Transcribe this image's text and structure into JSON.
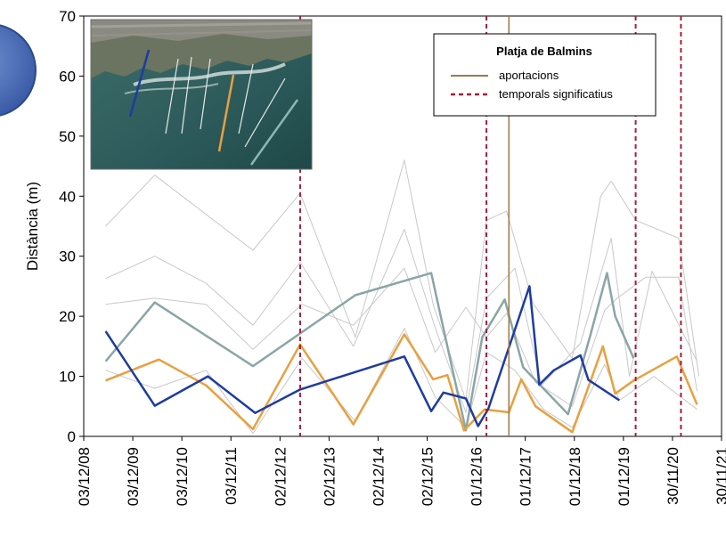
{
  "chart_data": {
    "type": "line",
    "ylabel": "Distància (m)",
    "xlabel": "",
    "ylim": [
      0,
      70
    ],
    "yticks": [
      0,
      10,
      20,
      30,
      40,
      50,
      60,
      70
    ],
    "x_tick_labels": [
      "03/12/08",
      "03/12/09",
      "03/12/10",
      "03/12/11",
      "02/12/12",
      "02/12/13",
      "02/12/14",
      "02/12/15",
      "01/12/16",
      "01/12/17",
      "01/12/18",
      "01/12/19",
      "30/11/20",
      "30/11/21"
    ],
    "xlim": [
      "2008-12-03",
      "2021-11-30"
    ],
    "legend": {
      "title": "Platja de Balmins",
      "items": [
        {
          "label": "aportacions",
          "color": "#a0784a",
          "style": "solid"
        },
        {
          "label": "temporals significatius",
          "color": "#a01e3c",
          "style": "dashed"
        }
      ]
    },
    "vertical_markers": [
      {
        "kind": "temporals significatius",
        "x": "2013-05-01",
        "color": "#a01e3c",
        "style": "dashed"
      },
      {
        "kind": "temporals significatius",
        "x": "2017-02-15",
        "color": "#a01e3c",
        "style": "dashed"
      },
      {
        "kind": "temporals significatius",
        "x": "2020-03-01",
        "color": "#a01e3c",
        "style": "dashed"
      },
      {
        "kind": "temporals significatius",
        "x": "2021-02-01",
        "color": "#a01e3c",
        "style": "dashed"
      },
      {
        "kind": "aportacions",
        "x": "2017-08-01",
        "color": "#a0784a",
        "style": "solid"
      }
    ],
    "series": [
      {
        "color": "#8aa6a4",
        "width": 2.5,
        "points": [
          [
            "2009-05-15",
            12.5
          ],
          [
            "2010-05-15",
            22.3
          ],
          [
            "2012-05-15",
            11.7
          ],
          [
            "2014-06-15",
            23.5
          ],
          [
            "2016-01-01",
            27.2
          ],
          [
            "2016-09-15",
            1.0
          ],
          [
            "2017-01-15",
            16.5
          ],
          [
            "2017-07-01",
            22.8
          ],
          [
            "2017-11-15",
            11.5
          ],
          [
            "2018-10-15",
            3.7
          ],
          [
            "2019-04-01",
            17.0
          ],
          [
            "2019-08-01",
            27.2
          ],
          [
            "2019-10-01",
            20.0
          ],
          [
            "2020-02-15",
            13.0
          ]
        ]
      },
      {
        "color": "#e8a040",
        "width": 2.5,
        "points": [
          [
            "2009-05-15",
            9.3
          ],
          [
            "2010-06-15",
            12.8
          ],
          [
            "2011-06-01",
            8.5
          ],
          [
            "2012-05-15",
            1.2
          ],
          [
            "2013-05-01",
            15.3
          ],
          [
            "2014-06-01",
            2.0
          ],
          [
            "2015-06-15",
            17.0
          ],
          [
            "2016-01-15",
            9.5
          ],
          [
            "2016-05-01",
            10.2
          ],
          [
            "2016-09-01",
            1.0
          ],
          [
            "2017-02-01",
            4.5
          ],
          [
            "2017-08-01",
            4.0
          ],
          [
            "2017-11-01",
            9.5
          ],
          [
            "2018-02-15",
            5.0
          ],
          [
            "2018-11-15",
            0.7
          ],
          [
            "2019-07-01",
            15.0
          ],
          [
            "2019-10-01",
            7.1
          ],
          [
            "2020-02-15",
            9.3
          ],
          [
            "2021-01-01",
            13.3
          ],
          [
            "2021-06-01",
            5.3
          ]
        ]
      },
      {
        "color": "#1e3ca0",
        "width": 2.5,
        "points": [
          [
            "2009-05-15",
            17.5
          ],
          [
            "2010-05-15",
            5.1
          ],
          [
            "2011-06-15",
            10.0
          ],
          [
            "2012-06-01",
            3.9
          ],
          [
            "2013-05-01",
            7.8
          ],
          [
            "2015-06-15",
            13.3
          ],
          [
            "2016-01-01",
            4.2
          ],
          [
            "2016-04-01",
            7.3
          ],
          [
            "2016-09-15",
            6.3
          ],
          [
            "2016-12-15",
            1.7
          ],
          [
            "2017-03-01",
            4.6
          ],
          [
            "2018-01-01",
            25.0
          ],
          [
            "2018-03-15",
            8.6
          ],
          [
            "2018-07-01",
            11.0
          ],
          [
            "2019-01-15",
            13.5
          ],
          [
            "2019-03-15",
            9.4
          ],
          [
            "2019-11-01",
            6.0
          ]
        ]
      },
      {
        "color": "#c8c8c8",
        "width": 1,
        "points": [
          [
            "2009-05-15",
            35.0
          ],
          [
            "2010-05-15",
            43.5
          ],
          [
            "2012-05-15",
            31.0
          ],
          [
            "2013-05-01",
            40.5
          ],
          [
            "2014-06-15",
            16.5
          ],
          [
            "2015-06-15",
            46.0
          ],
          [
            "2016-01-15",
            22.0
          ],
          [
            "2016-09-15",
            6.0
          ],
          [
            "2017-02-15",
            36.0
          ],
          [
            "2017-07-15",
            37.5
          ],
          [
            "2018-02-01",
            22.0
          ],
          [
            "2018-11-15",
            13.0
          ],
          [
            "2019-06-15",
            40.0
          ],
          [
            "2019-09-01",
            42.5
          ],
          [
            "2020-03-01",
            36.0
          ],
          [
            "2021-01-15",
            33.0
          ],
          [
            "2021-06-15",
            10.0
          ]
        ]
      },
      {
        "color": "#c8c8c8",
        "width": 1,
        "points": [
          [
            "2009-05-15",
            26.3
          ],
          [
            "2010-05-15",
            30.0
          ],
          [
            "2011-06-01",
            25.5
          ],
          [
            "2012-05-15",
            18.5
          ],
          [
            "2013-05-01",
            29.0
          ],
          [
            "2014-06-01",
            15.0
          ],
          [
            "2015-06-15",
            34.5
          ],
          [
            "2016-02-01",
            18.0
          ],
          [
            "2016-09-15",
            4.0
          ],
          [
            "2017-02-15",
            23.0
          ],
          [
            "2017-09-15",
            28.0
          ],
          [
            "2018-04-01",
            8.5
          ],
          [
            "2019-01-15",
            15.5
          ],
          [
            "2019-09-01",
            33.0
          ],
          [
            "2020-01-15",
            10.0
          ],
          [
            "2020-07-01",
            27.5
          ],
          [
            "2021-06-01",
            12.5
          ]
        ]
      },
      {
        "color": "#c8c8c8",
        "width": 1,
        "points": [
          [
            "2009-05-15",
            22.0
          ],
          [
            "2010-05-15",
            23.0
          ],
          [
            "2011-06-01",
            22.0
          ],
          [
            "2012-05-15",
            14.5
          ],
          [
            "2013-05-15",
            22.0
          ],
          [
            "2014-06-01",
            18.5
          ],
          [
            "2015-06-15",
            28.0
          ],
          [
            "2016-02-01",
            14.0
          ],
          [
            "2016-09-15",
            21.5
          ],
          [
            "2017-02-15",
            16.5
          ],
          [
            "2017-07-15",
            20.5
          ],
          [
            "2018-02-15",
            9.0
          ],
          [
            "2018-11-15",
            5.0
          ],
          [
            "2019-07-15",
            21.0
          ],
          [
            "2019-10-15",
            23.0
          ],
          [
            "2020-05-15",
            26.5
          ],
          [
            "2021-01-15",
            26.5
          ],
          [
            "2021-06-01",
            7.5
          ]
        ]
      },
      {
        "color": "#c8c8c8",
        "width": 1,
        "points": [
          [
            "2009-05-15",
            11.0
          ],
          [
            "2010-05-15",
            8.0
          ],
          [
            "2011-06-01",
            11.0
          ],
          [
            "2012-05-15",
            0.5
          ],
          [
            "2013-05-15",
            13.0
          ],
          [
            "2014-06-15",
            2.5
          ],
          [
            "2015-06-15",
            18.0
          ],
          [
            "2016-02-01",
            6.5
          ],
          [
            "2016-09-15",
            1.5
          ],
          [
            "2017-02-15",
            14.0
          ],
          [
            "2017-09-15",
            11.0
          ],
          [
            "2018-04-15",
            4.5
          ],
          [
            "2018-11-15",
            1.5
          ],
          [
            "2019-07-15",
            12.0
          ],
          [
            "2019-11-01",
            6.0
          ],
          [
            "2020-07-15",
            10.0
          ],
          [
            "2021-06-01",
            4.5
          ]
        ]
      }
    ]
  }
}
